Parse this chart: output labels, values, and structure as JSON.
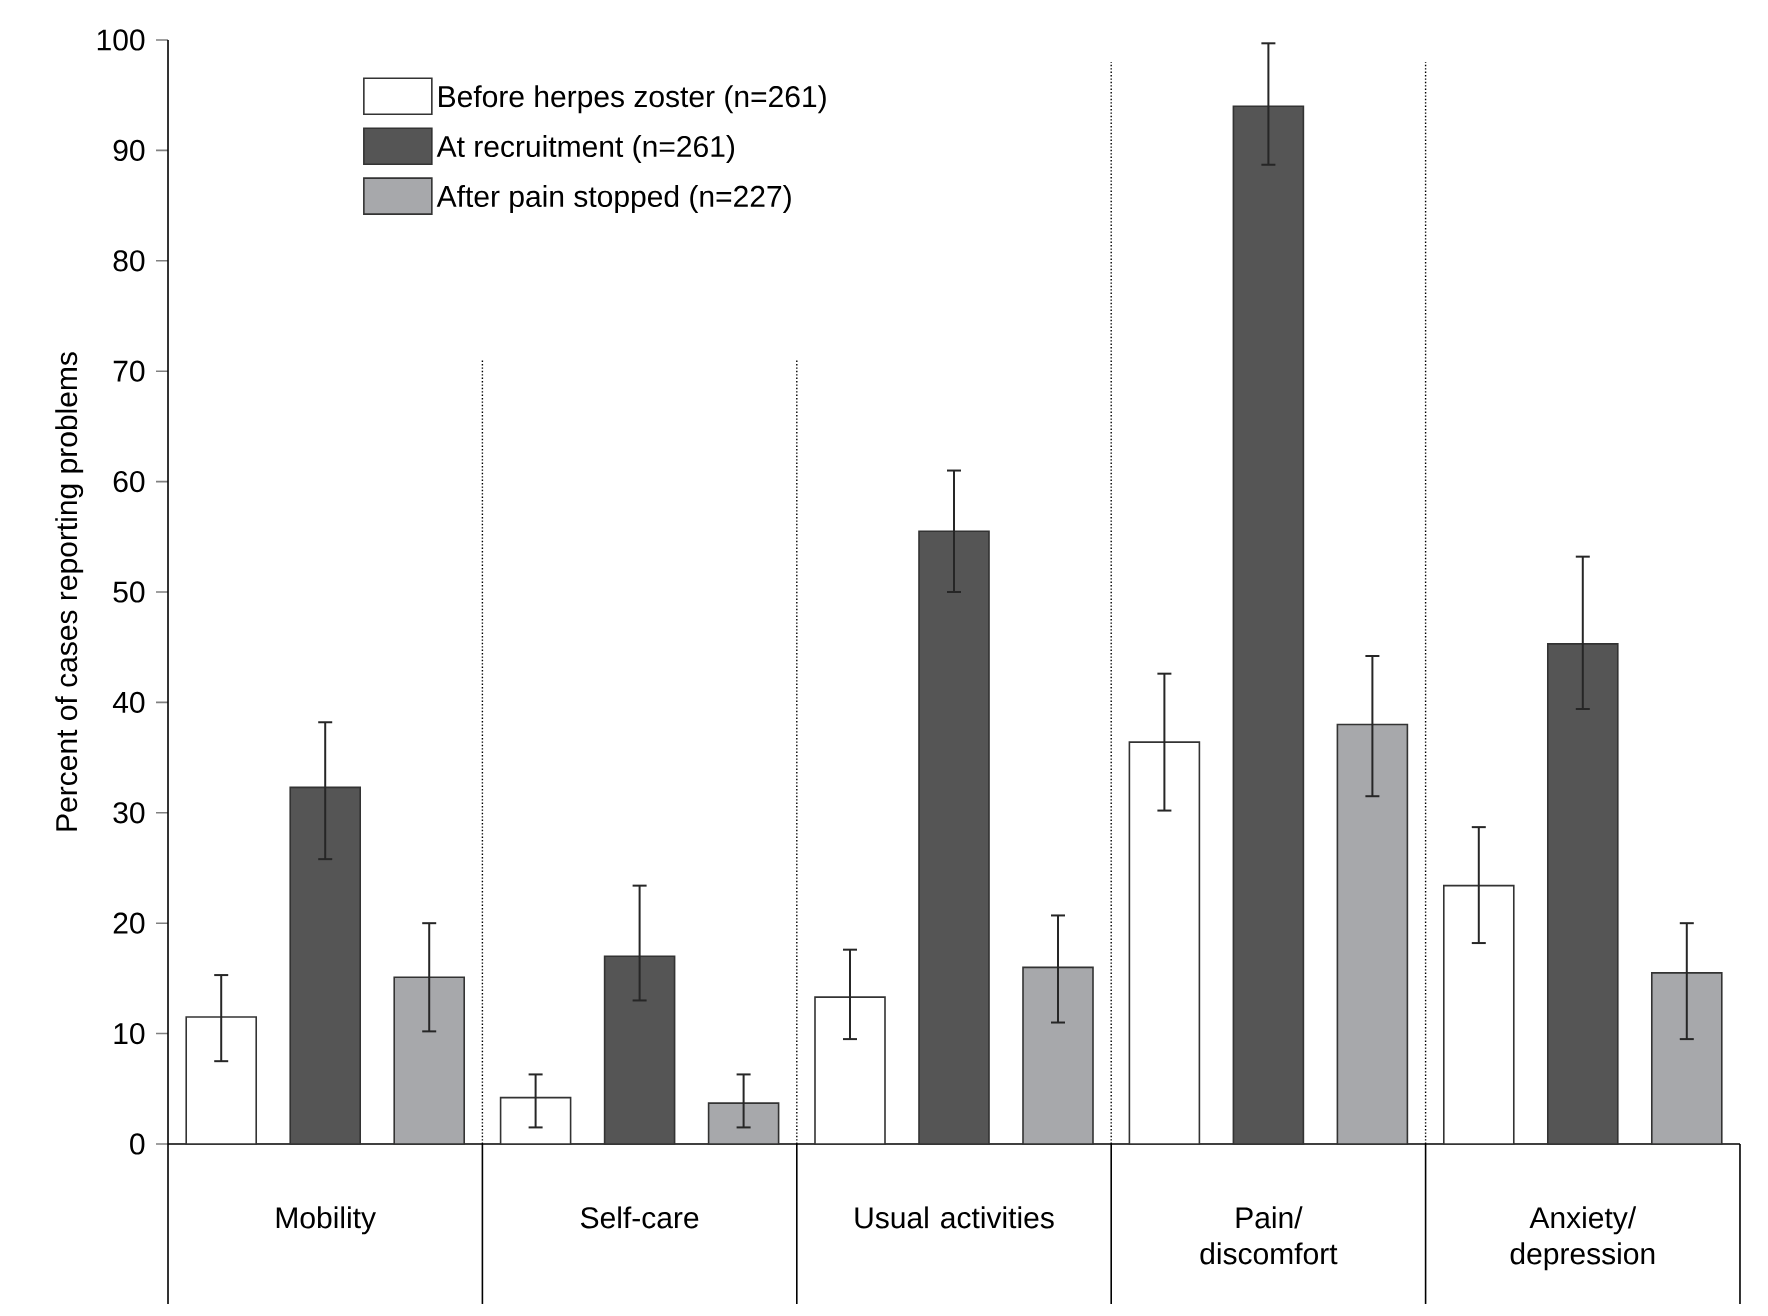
{
  "chart_data": {
    "type": "bar",
    "ylabel": "Percent of cases reporting problems",
    "categories": [
      "Mobility",
      "Self-care",
      "Usual activities",
      "Pain/ discomfort",
      "Anxiety/ depression"
    ],
    "series": [
      {
        "name": "Before herpes zoster (n=261)",
        "color": "#ffffff",
        "values": [
          11.5,
          4.2,
          13.3,
          36.4,
          23.4
        ],
        "errors": [
          [
            7.5,
            15.3
          ],
          [
            1.5,
            6.3
          ],
          [
            9.5,
            17.6
          ],
          [
            30.2,
            42.6
          ],
          [
            18.2,
            28.7
          ]
        ]
      },
      {
        "name": "At  recruitment (n=261)",
        "color": "#555555",
        "values": [
          32.3,
          17,
          55.5,
          94,
          45.3
        ],
        "errors": [
          [
            25.8,
            38.2
          ],
          [
            13,
            23.4
          ],
          [
            50,
            61
          ],
          [
            88.7,
            99.7
          ],
          [
            39.4,
            53.2
          ]
        ]
      },
      {
        "name": "After pain stopped (n=227)",
        "color": "#a7a8ab",
        "values": [
          15.1,
          3.7,
          16,
          38,
          15.5
        ],
        "errors": [
          [
            10.2,
            20
          ],
          [
            1.5,
            6.3
          ],
          [
            11,
            20.7
          ],
          [
            31.5,
            44.2
          ],
          [
            9.5,
            20
          ]
        ]
      }
    ],
    "ylim": [
      0,
      100
    ],
    "yticks": [
      0,
      10,
      20,
      30,
      40,
      50,
      60,
      70,
      80,
      90,
      100
    ],
    "grid": false,
    "legend": "top left"
  }
}
